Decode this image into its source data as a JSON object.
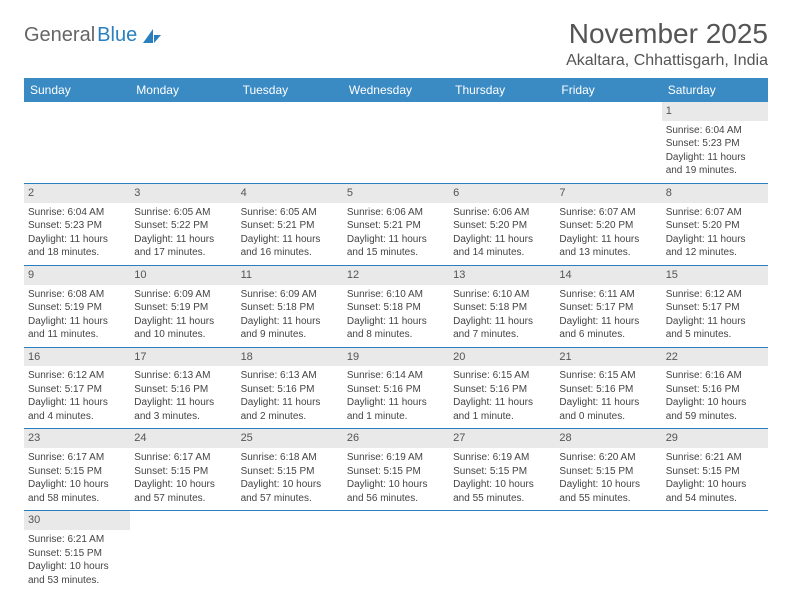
{
  "brand": {
    "part1": "General",
    "part2": "Blue"
  },
  "title": "November 2025",
  "location": "Akaltara, Chhattisgarh, India",
  "colors": {
    "header_bg": "#3a8ac4",
    "border": "#2a7fbf",
    "daynum_bg": "#e9e9e9",
    "text": "#444444"
  },
  "weekdays": [
    "Sunday",
    "Monday",
    "Tuesday",
    "Wednesday",
    "Thursday",
    "Friday",
    "Saturday"
  ],
  "weeks": [
    [
      null,
      null,
      null,
      null,
      null,
      null,
      {
        "n": "1",
        "sr": "Sunrise: 6:04 AM",
        "ss": "Sunset: 5:23 PM",
        "dl": "Daylight: 11 hours and 19 minutes."
      }
    ],
    [
      {
        "n": "2",
        "sr": "Sunrise: 6:04 AM",
        "ss": "Sunset: 5:23 PM",
        "dl": "Daylight: 11 hours and 18 minutes."
      },
      {
        "n": "3",
        "sr": "Sunrise: 6:05 AM",
        "ss": "Sunset: 5:22 PM",
        "dl": "Daylight: 11 hours and 17 minutes."
      },
      {
        "n": "4",
        "sr": "Sunrise: 6:05 AM",
        "ss": "Sunset: 5:21 PM",
        "dl": "Daylight: 11 hours and 16 minutes."
      },
      {
        "n": "5",
        "sr": "Sunrise: 6:06 AM",
        "ss": "Sunset: 5:21 PM",
        "dl": "Daylight: 11 hours and 15 minutes."
      },
      {
        "n": "6",
        "sr": "Sunrise: 6:06 AM",
        "ss": "Sunset: 5:20 PM",
        "dl": "Daylight: 11 hours and 14 minutes."
      },
      {
        "n": "7",
        "sr": "Sunrise: 6:07 AM",
        "ss": "Sunset: 5:20 PM",
        "dl": "Daylight: 11 hours and 13 minutes."
      },
      {
        "n": "8",
        "sr": "Sunrise: 6:07 AM",
        "ss": "Sunset: 5:20 PM",
        "dl": "Daylight: 11 hours and 12 minutes."
      }
    ],
    [
      {
        "n": "9",
        "sr": "Sunrise: 6:08 AM",
        "ss": "Sunset: 5:19 PM",
        "dl": "Daylight: 11 hours and 11 minutes."
      },
      {
        "n": "10",
        "sr": "Sunrise: 6:09 AM",
        "ss": "Sunset: 5:19 PM",
        "dl": "Daylight: 11 hours and 10 minutes."
      },
      {
        "n": "11",
        "sr": "Sunrise: 6:09 AM",
        "ss": "Sunset: 5:18 PM",
        "dl": "Daylight: 11 hours and 9 minutes."
      },
      {
        "n": "12",
        "sr": "Sunrise: 6:10 AM",
        "ss": "Sunset: 5:18 PM",
        "dl": "Daylight: 11 hours and 8 minutes."
      },
      {
        "n": "13",
        "sr": "Sunrise: 6:10 AM",
        "ss": "Sunset: 5:18 PM",
        "dl": "Daylight: 11 hours and 7 minutes."
      },
      {
        "n": "14",
        "sr": "Sunrise: 6:11 AM",
        "ss": "Sunset: 5:17 PM",
        "dl": "Daylight: 11 hours and 6 minutes."
      },
      {
        "n": "15",
        "sr": "Sunrise: 6:12 AM",
        "ss": "Sunset: 5:17 PM",
        "dl": "Daylight: 11 hours and 5 minutes."
      }
    ],
    [
      {
        "n": "16",
        "sr": "Sunrise: 6:12 AM",
        "ss": "Sunset: 5:17 PM",
        "dl": "Daylight: 11 hours and 4 minutes."
      },
      {
        "n": "17",
        "sr": "Sunrise: 6:13 AM",
        "ss": "Sunset: 5:16 PM",
        "dl": "Daylight: 11 hours and 3 minutes."
      },
      {
        "n": "18",
        "sr": "Sunrise: 6:13 AM",
        "ss": "Sunset: 5:16 PM",
        "dl": "Daylight: 11 hours and 2 minutes."
      },
      {
        "n": "19",
        "sr": "Sunrise: 6:14 AM",
        "ss": "Sunset: 5:16 PM",
        "dl": "Daylight: 11 hours and 1 minute."
      },
      {
        "n": "20",
        "sr": "Sunrise: 6:15 AM",
        "ss": "Sunset: 5:16 PM",
        "dl": "Daylight: 11 hours and 1 minute."
      },
      {
        "n": "21",
        "sr": "Sunrise: 6:15 AM",
        "ss": "Sunset: 5:16 PM",
        "dl": "Daylight: 11 hours and 0 minutes."
      },
      {
        "n": "22",
        "sr": "Sunrise: 6:16 AM",
        "ss": "Sunset: 5:16 PM",
        "dl": "Daylight: 10 hours and 59 minutes."
      }
    ],
    [
      {
        "n": "23",
        "sr": "Sunrise: 6:17 AM",
        "ss": "Sunset: 5:15 PM",
        "dl": "Daylight: 10 hours and 58 minutes."
      },
      {
        "n": "24",
        "sr": "Sunrise: 6:17 AM",
        "ss": "Sunset: 5:15 PM",
        "dl": "Daylight: 10 hours and 57 minutes."
      },
      {
        "n": "25",
        "sr": "Sunrise: 6:18 AM",
        "ss": "Sunset: 5:15 PM",
        "dl": "Daylight: 10 hours and 57 minutes."
      },
      {
        "n": "26",
        "sr": "Sunrise: 6:19 AM",
        "ss": "Sunset: 5:15 PM",
        "dl": "Daylight: 10 hours and 56 minutes."
      },
      {
        "n": "27",
        "sr": "Sunrise: 6:19 AM",
        "ss": "Sunset: 5:15 PM",
        "dl": "Daylight: 10 hours and 55 minutes."
      },
      {
        "n": "28",
        "sr": "Sunrise: 6:20 AM",
        "ss": "Sunset: 5:15 PM",
        "dl": "Daylight: 10 hours and 55 minutes."
      },
      {
        "n": "29",
        "sr": "Sunrise: 6:21 AM",
        "ss": "Sunset: 5:15 PM",
        "dl": "Daylight: 10 hours and 54 minutes."
      }
    ],
    [
      {
        "n": "30",
        "sr": "Sunrise: 6:21 AM",
        "ss": "Sunset: 5:15 PM",
        "dl": "Daylight: 10 hours and 53 minutes."
      },
      null,
      null,
      null,
      null,
      null,
      null
    ]
  ]
}
